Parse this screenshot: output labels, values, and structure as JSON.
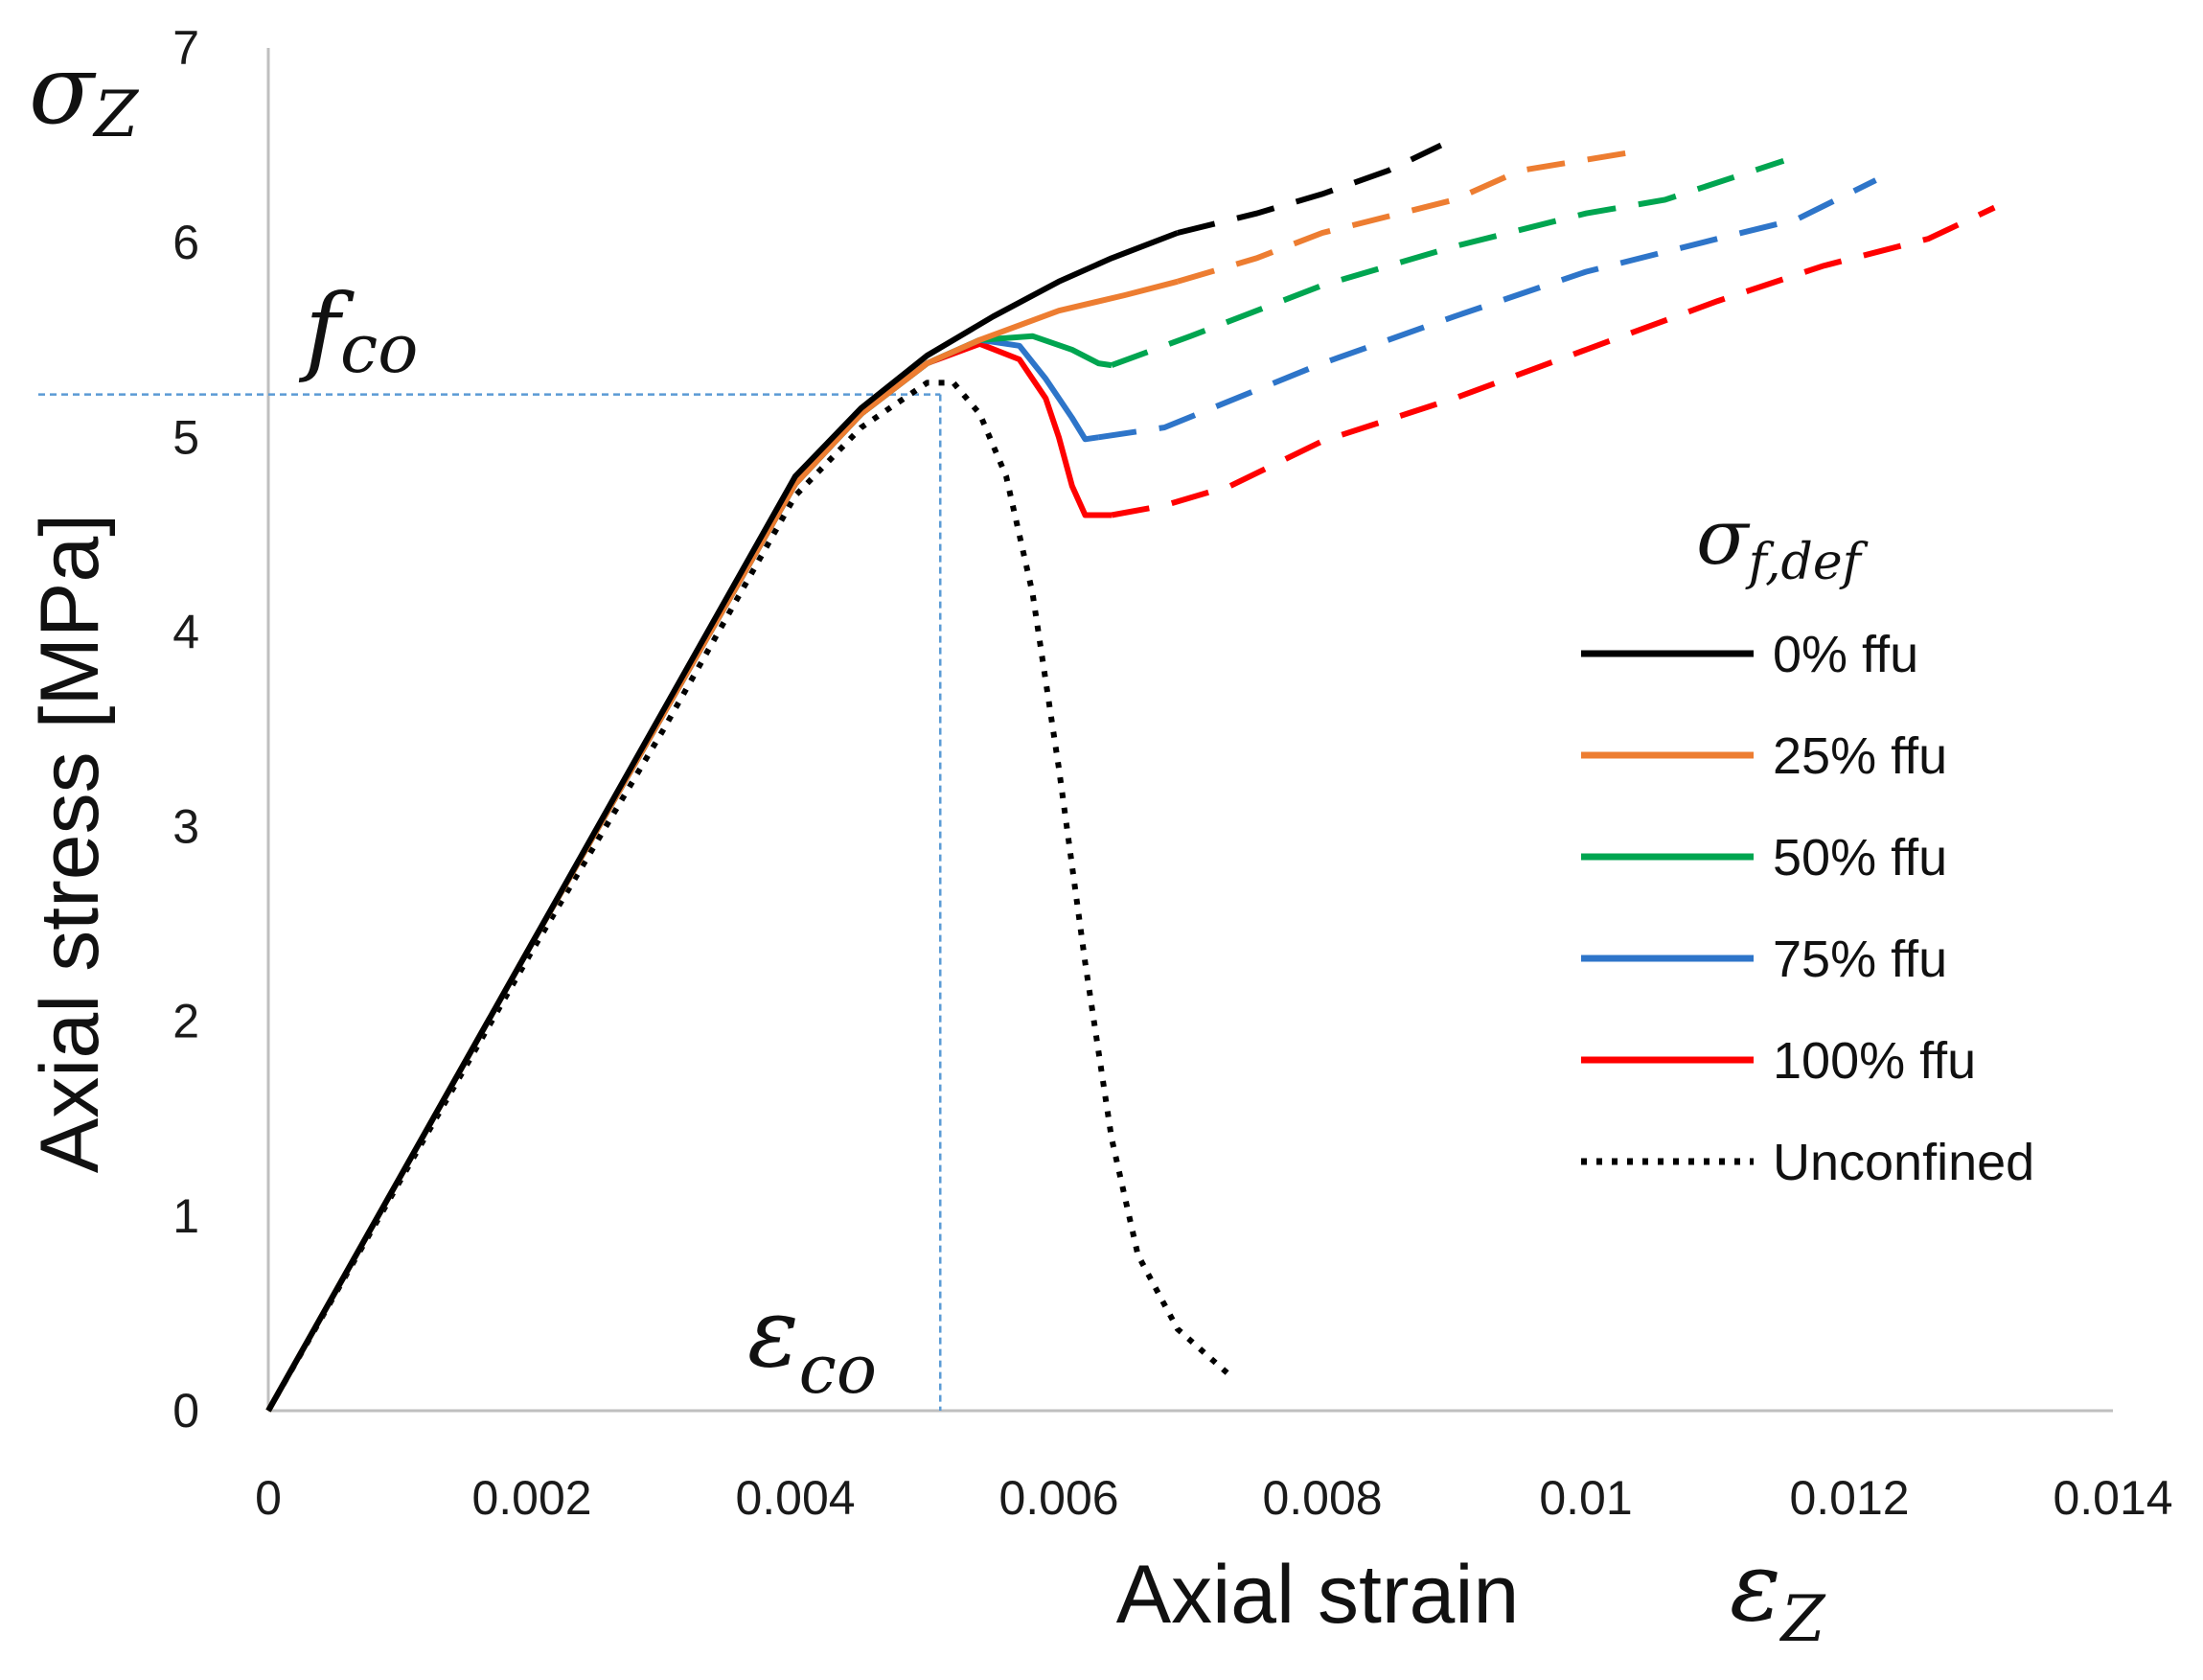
{
  "chart_data": {
    "type": "line",
    "xlabel": "Axial strain",
    "xlabel_symbol": "ε",
    "xlabel_symbol_sub": "Z",
    "ylabel": "Axial stress [MPa]",
    "ylabel_symbol": "σ",
    "ylabel_symbol_sub": "Z",
    "xlim": [
      0,
      0.014
    ],
    "ylim": [
      0,
      7
    ],
    "xticks": [
      0,
      0.002,
      0.004,
      0.006,
      0.008,
      0.01,
      0.012,
      0.014
    ],
    "xtick_labels": [
      "0",
      "0.002",
      "0.004",
      "0.006",
      "0.008",
      "0.01",
      "0.012",
      "0.014"
    ],
    "yticks": [
      0,
      1,
      2,
      3,
      4,
      5,
      6,
      7
    ],
    "ytick_labels": [
      "0",
      "1",
      "2",
      "3",
      "4",
      "5",
      "6",
      "7"
    ],
    "grid": false,
    "legend_title": "σ",
    "legend_title_sub": "f,def",
    "legend_position": "right",
    "reference": {
      "peak_stress": 5.22,
      "peak_strain": 0.0051,
      "stress_label": "f",
      "stress_label_sub": "co",
      "strain_label": "ε",
      "strain_label_sub": "co",
      "color": "#5b9bd5"
    },
    "series": [
      {
        "name": "0% ffu",
        "color": "#000000",
        "style": "solid",
        "points": [
          [
            0,
            0
          ],
          [
            0.001,
            1.2
          ],
          [
            0.002,
            2.4
          ],
          [
            0.003,
            3.6
          ],
          [
            0.004,
            4.8
          ],
          [
            0.0045,
            5.15
          ],
          [
            0.005,
            5.42
          ],
          [
            0.0055,
            5.62
          ],
          [
            0.006,
            5.8
          ],
          [
            0.0064,
            5.92
          ],
          [
            0.0069,
            6.05
          ]
        ],
        "extension": [
          [
            0.0069,
            6.05
          ],
          [
            0.0075,
            6.15
          ],
          [
            0.008,
            6.25
          ],
          [
            0.0085,
            6.37
          ],
          [
            0.0089,
            6.5
          ]
        ]
      },
      {
        "name": "25% ffu",
        "color": "#ed7d31",
        "style": "solid",
        "points": [
          [
            0,
            0
          ],
          [
            0.001,
            1.2
          ],
          [
            0.002,
            2.4
          ],
          [
            0.003,
            3.58
          ],
          [
            0.004,
            4.76
          ],
          [
            0.0045,
            5.12
          ],
          [
            0.005,
            5.38
          ],
          [
            0.0054,
            5.5
          ],
          [
            0.006,
            5.65
          ],
          [
            0.0065,
            5.73
          ],
          [
            0.0069,
            5.8
          ]
        ],
        "extension": [
          [
            0.0069,
            5.8
          ],
          [
            0.0075,
            5.92
          ],
          [
            0.008,
            6.05
          ],
          [
            0.009,
            6.22
          ],
          [
            0.0095,
            6.37
          ],
          [
            0.0104,
            6.47
          ]
        ]
      },
      {
        "name": "50% ffu",
        "color": "#00a550",
        "style": "solid",
        "points": [
          [
            0,
            0
          ],
          [
            0.001,
            1.2
          ],
          [
            0.002,
            2.4
          ],
          [
            0.003,
            3.58
          ],
          [
            0.004,
            4.76
          ],
          [
            0.0045,
            5.12
          ],
          [
            0.005,
            5.38
          ],
          [
            0.0054,
            5.5
          ],
          [
            0.0058,
            5.52
          ],
          [
            0.0061,
            5.45
          ],
          [
            0.0063,
            5.38
          ],
          [
            0.0064,
            5.37
          ]
        ],
        "extension": [
          [
            0.0064,
            5.37
          ],
          [
            0.007,
            5.52
          ],
          [
            0.008,
            5.78
          ],
          [
            0.009,
            5.98
          ],
          [
            0.01,
            6.15
          ],
          [
            0.0106,
            6.22
          ],
          [
            0.0115,
            6.42
          ]
        ]
      },
      {
        "name": "75% ffu",
        "color": "#2e75c9",
        "style": "solid",
        "points": [
          [
            0,
            0
          ],
          [
            0.001,
            1.2
          ],
          [
            0.002,
            2.4
          ],
          [
            0.003,
            3.58
          ],
          [
            0.004,
            4.76
          ],
          [
            0.0045,
            5.12
          ],
          [
            0.005,
            5.38
          ],
          [
            0.0054,
            5.5
          ],
          [
            0.0057,
            5.47
          ],
          [
            0.0059,
            5.3
          ],
          [
            0.0061,
            5.1
          ],
          [
            0.0062,
            4.99
          ],
          [
            0.0063,
            5.0
          ]
        ],
        "extension": [
          [
            0.0063,
            5.0
          ],
          [
            0.0068,
            5.05
          ],
          [
            0.008,
            5.38
          ],
          [
            0.009,
            5.62
          ],
          [
            0.01,
            5.85
          ],
          [
            0.011,
            6.02
          ],
          [
            0.0116,
            6.12
          ],
          [
            0.0122,
            6.32
          ]
        ]
      },
      {
        "name": "100% ffu",
        "color": "#ff0000",
        "style": "solid",
        "points": [
          [
            0,
            0
          ],
          [
            0.001,
            1.2
          ],
          [
            0.002,
            2.4
          ],
          [
            0.003,
            3.58
          ],
          [
            0.004,
            4.76
          ],
          [
            0.0045,
            5.12
          ],
          [
            0.005,
            5.38
          ],
          [
            0.0054,
            5.48
          ],
          [
            0.0057,
            5.4
          ],
          [
            0.0059,
            5.2
          ],
          [
            0.006,
            5.0
          ],
          [
            0.0061,
            4.75
          ],
          [
            0.0062,
            4.6
          ],
          [
            0.0064,
            4.6
          ]
        ],
        "extension": [
          [
            0.0064,
            4.6
          ],
          [
            0.0068,
            4.65
          ],
          [
            0.0073,
            4.75
          ],
          [
            0.008,
            4.98
          ],
          [
            0.009,
            5.2
          ],
          [
            0.01,
            5.45
          ],
          [
            0.011,
            5.7
          ],
          [
            0.0118,
            5.88
          ],
          [
            0.0126,
            6.02
          ],
          [
            0.0131,
            6.18
          ]
        ]
      },
      {
        "name": "Unconfined",
        "color": "#000000",
        "style": "dotted",
        "points": [
          [
            0,
            0
          ],
          [
            0.001,
            1.18
          ],
          [
            0.002,
            2.36
          ],
          [
            0.003,
            3.5
          ],
          [
            0.004,
            4.7
          ],
          [
            0.0045,
            5.05
          ],
          [
            0.005,
            5.28
          ],
          [
            0.0052,
            5.28
          ],
          [
            0.0054,
            5.12
          ],
          [
            0.0056,
            4.8
          ],
          [
            0.0058,
            4.2
          ],
          [
            0.006,
            3.3
          ],
          [
            0.0062,
            2.3
          ],
          [
            0.0064,
            1.4
          ],
          [
            0.0066,
            0.8
          ],
          [
            0.0069,
            0.42
          ],
          [
            0.0073,
            0.18
          ]
        ]
      }
    ]
  }
}
